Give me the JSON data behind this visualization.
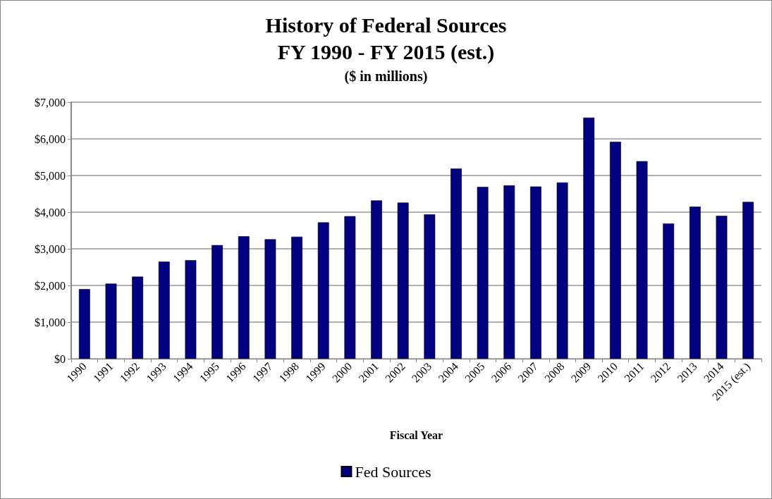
{
  "chart_data": {
    "type": "bar",
    "title": "History of Federal Sources\nFY 1990 - FY 2015 (est.)",
    "subtitle": "($ in millions)",
    "xlabel": "Fiscal Year",
    "categories": [
      "1990",
      "1991",
      "1992",
      "1993",
      "1994",
      "1995",
      "1996",
      "1997",
      "1998",
      "1999",
      "2000",
      "2001",
      "2002",
      "2003",
      "2004",
      "2005",
      "2006",
      "2007",
      "2008",
      "2009",
      "2010",
      "2011",
      "2012",
      "2013",
      "2014",
      "2015 (est.)"
    ],
    "series": [
      {
        "name": "Fed Sources",
        "color": "#000080",
        "values": [
          1900,
          2050,
          2240,
          2650,
          2690,
          3100,
          3340,
          3260,
          3330,
          3720,
          3890,
          4320,
          4260,
          3940,
          5190,
          4690,
          4730,
          4700,
          4810,
          6580,
          5920,
          5390,
          3690,
          4150,
          3900,
          4280
        ]
      }
    ],
    "ylim": [
      0,
      7000
    ],
    "yticks": [
      {
        "value": 0,
        "label": "$0"
      },
      {
        "value": 1000,
        "label": "$1,000"
      },
      {
        "value": 2000,
        "label": "$2,000"
      },
      {
        "value": 3000,
        "label": "$3,000"
      },
      {
        "value": 4000,
        "label": "$4,000"
      },
      {
        "value": 5000,
        "label": "$5,000"
      },
      {
        "value": 6000,
        "label": "$6,000"
      },
      {
        "value": 7000,
        "label": "$7,000"
      }
    ],
    "grid": "y",
    "legend": "bottom"
  }
}
